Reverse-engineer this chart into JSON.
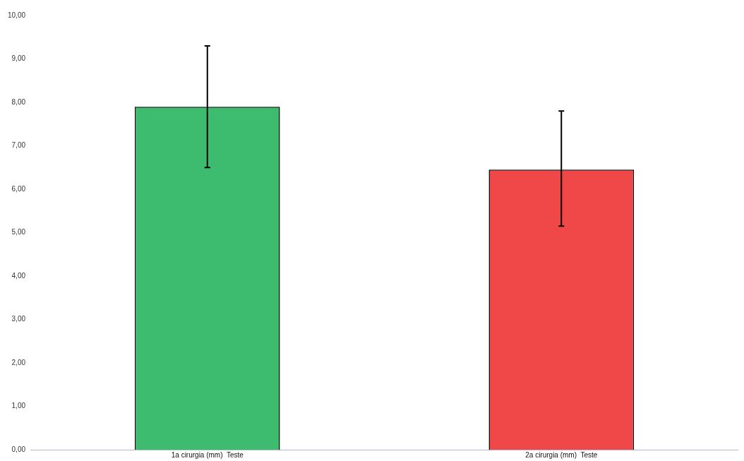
{
  "chart_data": {
    "type": "bar",
    "categories": [
      "1a cirurgia (mm)  Teste",
      "2a cirurgia (mm)  Teste"
    ],
    "values": [
      7.9,
      6.45
    ],
    "colors": [
      "#3dbb6e",
      "#f04848"
    ],
    "errors": [
      [
        6.5,
        9.3
      ],
      [
        5.15,
        7.8
      ]
    ],
    "ylim": [
      0,
      10
    ],
    "yticks": [
      {
        "value": 0,
        "label": "0,00"
      },
      {
        "value": 1,
        "label": "1,00"
      },
      {
        "value": 2,
        "label": "2,00"
      },
      {
        "value": 3,
        "label": "3,00"
      },
      {
        "value": 4,
        "label": "4,00"
      },
      {
        "value": 5,
        "label": "5,00"
      },
      {
        "value": 6,
        "label": "6,00"
      },
      {
        "value": 7,
        "label": "7,00"
      },
      {
        "value": 8,
        "label": "8,00"
      },
      {
        "value": 9,
        "label": "9,00"
      },
      {
        "value": 10,
        "label": "10,00"
      }
    ],
    "grid": false,
    "legend": false
  }
}
